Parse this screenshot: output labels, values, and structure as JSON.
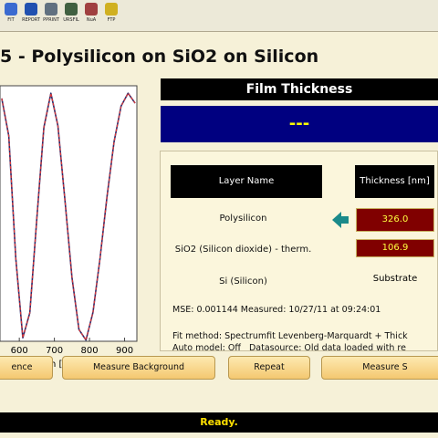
{
  "toolbar": [
    "FIT",
    "REPORT",
    "PPRINT",
    "URSFIL",
    "NuA",
    "FTP"
  ],
  "title": "5 - Polysilicon on SiO2 on Silicon",
  "plot": {
    "type": "line",
    "x_label": "Wavelength [nm]",
    "xlim": [
      545,
      935
    ],
    "xticks": [
      600,
      700,
      800,
      900
    ],
    "ylim": [
      0,
      1.03
    ],
    "x": [
      550,
      570,
      590,
      610,
      630,
      650,
      670,
      690,
      710,
      730,
      750,
      770,
      790,
      810,
      830,
      850,
      870,
      890,
      910,
      930
    ],
    "series": [
      {
        "color": "#2a2a6a",
        "values": [
          0.979,
          0.828,
          0.334,
          0.014,
          0.115,
          0.496,
          0.862,
          1.0,
          0.869,
          0.57,
          0.258,
          0.047,
          0.005,
          0.117,
          0.334,
          0.584,
          0.804,
          0.948,
          1.0,
          0.96
        ]
      },
      {
        "color": "#e03838",
        "values": [
          0.979,
          0.828,
          0.334,
          0.014,
          0.115,
          0.496,
          0.862,
          1.0,
          0.869,
          0.57,
          0.258,
          0.047,
          0.005,
          0.117,
          0.334,
          0.584,
          0.804,
          0.948,
          1.0,
          0.96
        ]
      }
    ]
  },
  "film_thickness": {
    "header": "Film Thickness",
    "result": "---"
  },
  "table": {
    "columns": [
      "Layer Name",
      "Thickness [nm]"
    ],
    "rows": [
      [
        "Polysilicon",
        "326.0"
      ],
      [
        "SiO2 (Silicon dioxide) - therm.",
        "106.9"
      ],
      [
        "Si (Silicon)",
        "Substrate"
      ]
    ]
  },
  "info": [
    "MSE: 0.001144 Measured: 10/27/11 at 09:24:01",
    "Fit method: Spectrumfit Levenberg-Marquardt + Thick",
    "Auto model: Off   Datasource: Old data loaded with re"
  ],
  "buttons": [
    "ence",
    "Measure Background",
    "Repeat",
    "Measure S"
  ],
  "status": "Ready."
}
